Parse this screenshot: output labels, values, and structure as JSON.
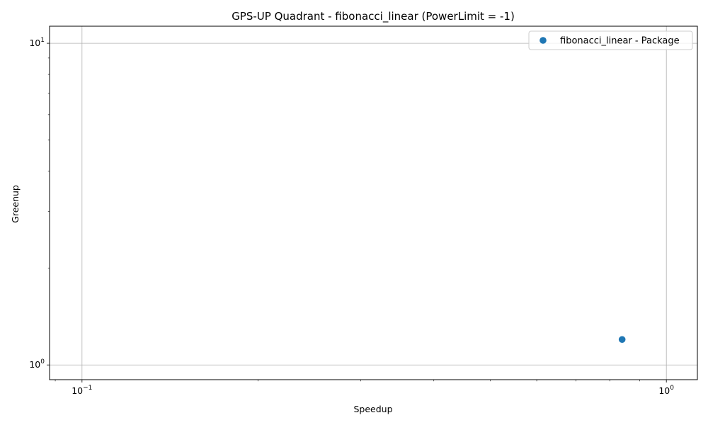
{
  "chart_data": {
    "type": "scatter",
    "title": "GPS-UP Quadrant - fibonacci_linear (PowerLimit = -1)",
    "xlabel": "Speedup",
    "ylabel": "Greenup",
    "xscale": "log",
    "yscale": "log",
    "xlim": [
      0.088,
      1.13
    ],
    "ylim": [
      0.9,
      11.3
    ],
    "grid": true,
    "legend_position": "top-right",
    "x_major_ticks": [
      0.1,
      1.0
    ],
    "x_tick_labels": [
      {
        "base": "10",
        "exp": "−1"
      },
      {
        "base": "10",
        "exp": "0"
      }
    ],
    "y_major_ticks": [
      1.0,
      10.0
    ],
    "y_tick_labels": [
      {
        "base": "10",
        "exp": "0"
      },
      {
        "base": "10",
        "exp": "1"
      }
    ],
    "series": [
      {
        "name": "fibonacci_linear - Package",
        "color": "#1f77b4",
        "points": [
          {
            "x": 0.84,
            "y": 1.2
          }
        ]
      }
    ]
  }
}
